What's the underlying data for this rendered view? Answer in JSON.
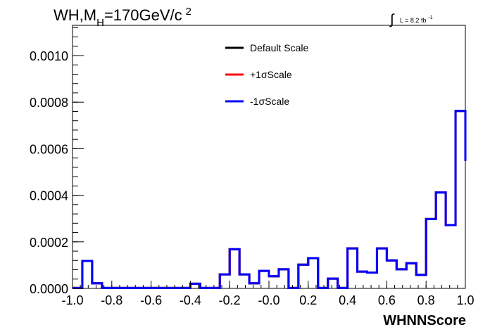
{
  "chart_data": {
    "type": "line",
    "title": "WH,M",
    "title_sub": "H",
    "title_tail": "=170GeV/c",
    "title_sup": "2",
    "lumi_symbol": "∫",
    "lumi_text": "L = 8.2 fb",
    "lumi_sup": "-1",
    "xlabel": "WHNNScore",
    "ylabel": "",
    "xlim": [
      -1.0,
      1.0
    ],
    "ylim": [
      0.0,
      0.00113
    ],
    "x_ticks": [
      "-1.0",
      "-0.8",
      "-0.6",
      "-0.4",
      "-0.2",
      "-0.0",
      "0.2",
      "0.4",
      "0.6",
      "0.8",
      "1.0"
    ],
    "y_ticks": [
      "0.0000",
      "0.0002",
      "0.0004",
      "0.0006",
      "0.0008",
      "0.0010"
    ],
    "grid": false,
    "legend_position": "top-center",
    "bin_edges": [
      -1.0,
      -0.95,
      -0.9,
      -0.85,
      -0.8,
      -0.75,
      -0.7,
      -0.65,
      -0.6,
      -0.55,
      -0.5,
      -0.45,
      -0.4,
      -0.35,
      -0.3,
      -0.25,
      -0.2,
      -0.15,
      -0.1,
      -0.05,
      0.0,
      0.05,
      0.1,
      0.15,
      0.2,
      0.25,
      0.3,
      0.35,
      0.4,
      0.45,
      0.5,
      0.55,
      0.6,
      0.65,
      0.7,
      0.75,
      0.8,
      0.85,
      0.9,
      0.95,
      1.0
    ],
    "series": [
      {
        "name": "Default Scale",
        "color": "#000000",
        "values": [
          2e-06,
          0.000118,
          2.2e-05,
          2e-06,
          2e-06,
          2e-06,
          2e-06,
          2e-06,
          2e-06,
          2e-06,
          2e-06,
          2e-06,
          2e-05,
          2e-06,
          2e-06,
          6e-05,
          0.000168,
          6e-05,
          2.2e-05,
          7.5e-05,
          5.2e-05,
          8.2e-05,
          2e-06,
          0.000102,
          0.00013,
          2e-06,
          4.2e-05,
          2e-06,
          0.000172,
          7.2e-05,
          6.8e-05,
          0.000172,
          0.00012,
          8.2e-05,
          0.000108,
          5.8e-05,
          0.000298,
          0.000412,
          0.000272,
          0.000762,
          0.000548
        ]
      },
      {
        "name": "+1σScale",
        "color": "#ff0000",
        "values": [
          2e-06,
          0.000118,
          2.2e-05,
          2e-06,
          2e-06,
          2e-06,
          2e-06,
          2e-06,
          2e-06,
          2e-06,
          2e-06,
          2e-06,
          2e-05,
          2e-06,
          2e-06,
          6e-05,
          0.000168,
          6e-05,
          2.2e-05,
          7.5e-05,
          5.2e-05,
          8.2e-05,
          2e-06,
          0.000102,
          0.00013,
          2e-06,
          4.2e-05,
          2e-06,
          0.000172,
          7.2e-05,
          6.8e-05,
          0.000172,
          0.00012,
          8.2e-05,
          0.000108,
          5.8e-05,
          0.000298,
          0.000412,
          0.000272,
          0.000762,
          0.000548
        ]
      },
      {
        "name": "-1σScale",
        "color": "#0000ff",
        "values": [
          2e-06,
          0.000118,
          2.2e-05,
          2e-06,
          2e-06,
          2e-06,
          2e-06,
          2e-06,
          2e-06,
          2e-06,
          2e-06,
          2e-06,
          2e-05,
          2e-06,
          2e-06,
          6e-05,
          0.000168,
          6e-05,
          2.2e-05,
          7.5e-05,
          5.2e-05,
          8.2e-05,
          2e-06,
          0.000102,
          0.00013,
          2e-06,
          4.2e-05,
          2e-06,
          0.000172,
          7.2e-05,
          6.8e-05,
          0.000172,
          0.00012,
          8.2e-05,
          0.000108,
          5.8e-05,
          0.000298,
          0.000412,
          0.000272,
          0.000762,
          0.000548
        ]
      }
    ]
  }
}
